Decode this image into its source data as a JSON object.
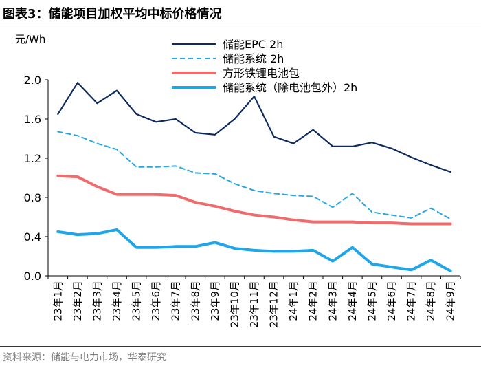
{
  "header": {
    "title": "图表3：储能项目加权平均中标价格情况"
  },
  "footer": {
    "source": "资料来源：储能与电力市场，华泰研究"
  },
  "chart_data": {
    "type": "line",
    "title": "图表3：储能项目加权平均中标价格情况",
    "ylabel": "元/Wh",
    "xlabel": "",
    "ylim": [
      0,
      2.0
    ],
    "yticks": [
      "0.0",
      "0.4",
      "0.8",
      "1.2",
      "1.6",
      "2.0"
    ],
    "grid": false,
    "legend_position": "top-right",
    "categories": [
      "23年1月",
      "23年2月",
      "23年3月",
      "23年4月",
      "23年5月",
      "23年6月",
      "23年7月",
      "23年8月",
      "23年9月",
      "23年10月",
      "23年11月",
      "23年12月",
      "24年1月",
      "24年2月",
      "24年3月",
      "24年4月",
      "24年5月",
      "24年6月",
      "24年7月",
      "24年8月",
      "24年9月"
    ],
    "series": [
      {
        "name": "储能EPC 2h",
        "color": "#0d2a5e",
        "style": "solid",
        "values": [
          1.65,
          1.97,
          1.76,
          1.89,
          1.65,
          1.57,
          1.6,
          1.46,
          1.44,
          1.6,
          1.83,
          1.42,
          1.35,
          1.49,
          1.32,
          1.32,
          1.36,
          1.3,
          1.21,
          1.13,
          1.06
        ]
      },
      {
        "name": "储能系统 2h",
        "color": "#2aa7e0",
        "style": "dashed",
        "values": [
          1.47,
          1.43,
          1.35,
          1.29,
          1.11,
          1.11,
          1.12,
          1.05,
          1.04,
          0.94,
          0.87,
          0.84,
          0.82,
          0.81,
          0.7,
          0.84,
          0.65,
          0.62,
          0.59,
          0.69,
          0.58
        ]
      },
      {
        "name": "方形铁锂电池包",
        "color": "#f06b6b",
        "style": "solid-thick",
        "values": [
          1.02,
          1.01,
          0.91,
          0.83,
          0.83,
          0.83,
          0.82,
          0.75,
          0.71,
          0.66,
          0.62,
          0.6,
          0.57,
          0.55,
          0.55,
          0.55,
          0.54,
          0.54,
          0.53,
          0.53,
          0.53
        ]
      },
      {
        "name": "储能系统（除电池包外）2h",
        "color": "#1ea6e8",
        "style": "solid-thick",
        "values": [
          0.45,
          0.42,
          0.43,
          0.47,
          0.29,
          0.29,
          0.3,
          0.3,
          0.34,
          0.28,
          0.26,
          0.25,
          0.25,
          0.26,
          0.15,
          0.29,
          0.12,
          0.09,
          0.06,
          0.16,
          0.05
        ]
      }
    ]
  }
}
